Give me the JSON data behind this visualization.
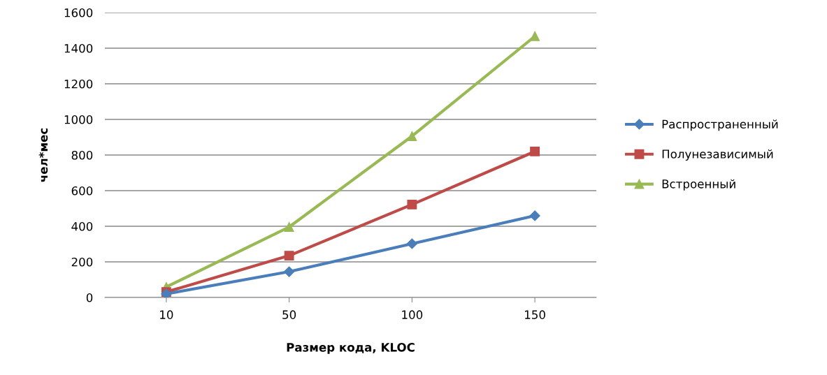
{
  "chart_data": {
    "type": "line",
    "xlabel": "Размер кода, KLOC",
    "ylabel": "чел*мес",
    "categories": [
      "10",
      "50",
      "100",
      "150"
    ],
    "series": [
      {
        "name": "Распространенный",
        "color": "#4a7ebb",
        "marker": "diamond",
        "values": [
          20,
          145,
          302,
          459
        ]
      },
      {
        "name": "Полунезависимый",
        "color": "#be4b48",
        "marker": "square",
        "values": [
          31,
          235,
          522,
          820
        ]
      },
      {
        "name": "Встроенный",
        "color": "#98b954",
        "marker": "triangle",
        "values": [
          59,
          396,
          906,
          1467
        ]
      }
    ],
    "ylim": [
      0,
      1600
    ],
    "yticks": [
      0,
      200,
      400,
      600,
      800,
      1000,
      1200,
      1400,
      1600
    ],
    "grid": "y",
    "legend": "right",
    "line_style": "solid"
  }
}
